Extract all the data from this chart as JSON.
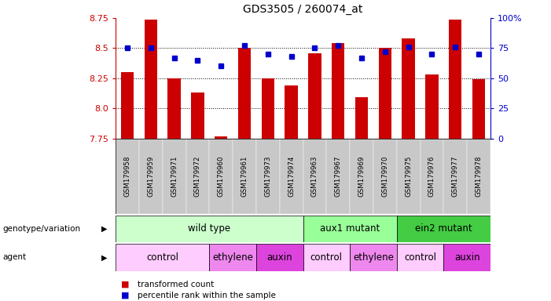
{
  "title": "GDS3505 / 260074_at",
  "samples": [
    "GSM179958",
    "GSM179959",
    "GSM179971",
    "GSM179972",
    "GSM179960",
    "GSM179961",
    "GSM179973",
    "GSM179974",
    "GSM179963",
    "GSM179967",
    "GSM179969",
    "GSM179970",
    "GSM179975",
    "GSM179976",
    "GSM179977",
    "GSM179978"
  ],
  "bar_values": [
    8.3,
    8.74,
    8.25,
    8.13,
    7.77,
    8.5,
    8.25,
    8.19,
    8.46,
    8.54,
    8.09,
    8.5,
    8.58,
    8.28,
    8.74,
    8.24
  ],
  "dot_values": [
    75,
    75,
    67,
    65,
    60,
    77,
    70,
    68,
    75,
    77,
    67,
    72,
    76,
    70,
    76,
    70
  ],
  "ymin": 7.75,
  "ymax": 8.75,
  "bar_color": "#cc0000",
  "dot_color": "#0000cc",
  "genotype_groups": [
    {
      "label": "wild type",
      "start": 0,
      "end": 8,
      "color": "#ccffcc"
    },
    {
      "label": "aux1 mutant",
      "start": 8,
      "end": 12,
      "color": "#99ff99"
    },
    {
      "label": "ein2 mutant",
      "start": 12,
      "end": 16,
      "color": "#44cc44"
    }
  ],
  "agent_groups": [
    {
      "label": "control",
      "start": 0,
      "end": 4,
      "color": "#ffccff"
    },
    {
      "label": "ethylene",
      "start": 4,
      "end": 6,
      "color": "#ee88ee"
    },
    {
      "label": "auxin",
      "start": 6,
      "end": 8,
      "color": "#dd44dd"
    },
    {
      "label": "control",
      "start": 8,
      "end": 10,
      "color": "#ffccff"
    },
    {
      "label": "ethylene",
      "start": 10,
      "end": 12,
      "color": "#ee88ee"
    },
    {
      "label": "control",
      "start": 12,
      "end": 14,
      "color": "#ffccff"
    },
    {
      "label": "auxin",
      "start": 14,
      "end": 16,
      "color": "#dd44dd"
    }
  ],
  "yticks": [
    7.75,
    8.0,
    8.25,
    8.5,
    8.75
  ],
  "right_yticks": [
    0,
    25,
    50,
    75,
    100
  ],
  "right_yticklabels": [
    "0",
    "25",
    "50",
    "75",
    "100%"
  ],
  "grid_lines": [
    8.0,
    8.25,
    8.5
  ],
  "legend_items": [
    {
      "label": "transformed count",
      "color": "#cc0000"
    },
    {
      "label": "percentile rank within the sample",
      "color": "#0000cc"
    }
  ]
}
